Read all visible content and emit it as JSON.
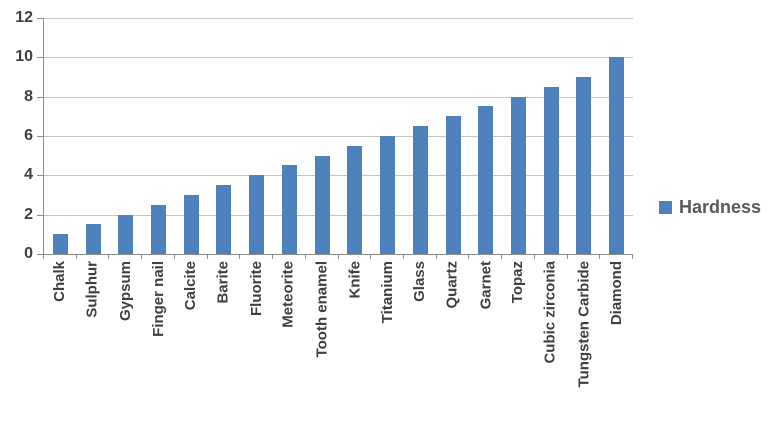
{
  "chart_data": {
    "type": "bar",
    "title": "",
    "xlabel": "",
    "ylabel": "",
    "categories": [
      "Chalk",
      "Sulphur",
      "Gypsum",
      "Finger nail",
      "Calcite",
      "Barite",
      "Fluorite",
      "Meteorite",
      "Tooth enamel",
      "Knife",
      "Titanium",
      "Glass",
      "Quartz",
      "Garnet",
      "Topaz",
      "Cubic zirconia",
      "Tungsten Carbide",
      "Diamond"
    ],
    "series": [
      {
        "name": "Hardness",
        "values": [
          1,
          1.5,
          2,
          2.5,
          3,
          3.5,
          4,
          4.5,
          5,
          5.5,
          6,
          6.5,
          7,
          7.5,
          8,
          8.5,
          9,
          10
        ]
      }
    ],
    "ylim": [
      0,
      12
    ],
    "yticks": [
      0,
      2,
      4,
      6,
      8,
      10,
      12
    ],
    "grid": true,
    "legend_position": "right",
    "x_tick_label_rotation_deg": -90,
    "colors": {
      "bar": "#4f81bd",
      "gridline": "#c6c6c6",
      "axis": "#8e8e8e",
      "text": "#404040",
      "legendtext": "#595959",
      "bg": "#ffffff"
    }
  }
}
